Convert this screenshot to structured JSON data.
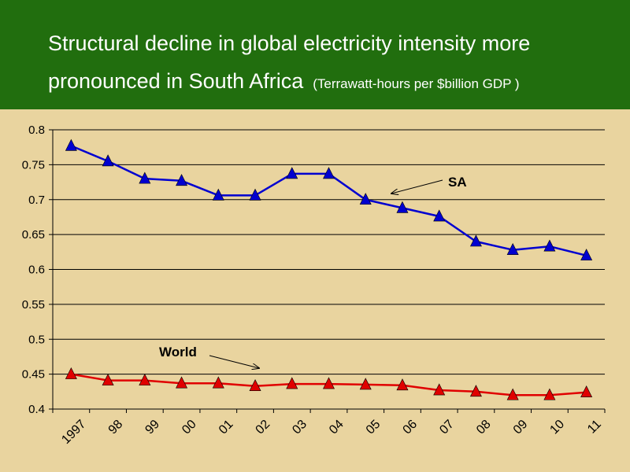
{
  "header": {
    "title_line1": "Structural decline in global electricity intensity more",
    "title_line2": "pronounced in South Africa",
    "subtitle": "(Terrawatt-hours per $billion GDP )"
  },
  "colors": {
    "header_bg": "#216E0E",
    "plot_bg": "#E9D49F",
    "sa_series": "#0000D0",
    "world_series": "#E00000"
  },
  "chart_data": {
    "type": "line",
    "title": "Structural decline in global electricity intensity more pronounced in South Africa",
    "subtitle": "(Terrawatt-hours per $billion GDP )",
    "xlabel": "",
    "ylabel": "",
    "ylim": [
      0.4,
      0.8
    ],
    "y_ticks": [
      "0.8",
      "0.75",
      "0.7",
      "0.65",
      "0.6",
      "0.55",
      "0.5",
      "0.45",
      "0.4"
    ],
    "categories": [
      "1997",
      "98",
      "99",
      "00",
      "01",
      "02",
      "03",
      "04",
      "05",
      "06",
      "07",
      "08",
      "09",
      "10",
      "11"
    ],
    "grid": true,
    "series": [
      {
        "name": "SA",
        "color": "#0000D0",
        "marker": "triangle",
        "values": [
          0.777,
          0.755,
          0.73,
          0.727,
          0.706,
          0.706,
          0.737,
          0.737,
          0.7,
          0.688,
          0.676,
          0.64,
          0.628,
          0.633,
          0.62
        ]
      },
      {
        "name": "World",
        "color": "#E00000",
        "marker": "triangle",
        "values": [
          0.45,
          0.441,
          0.441,
          0.437,
          0.437,
          0.433,
          0.436,
          0.436,
          0.435,
          0.434,
          0.427,
          0.425,
          0.42,
          0.42,
          0.424
        ]
      }
    ],
    "annotations": [
      {
        "text": "SA",
        "series": "SA"
      },
      {
        "text": "World",
        "series": "World"
      }
    ]
  }
}
